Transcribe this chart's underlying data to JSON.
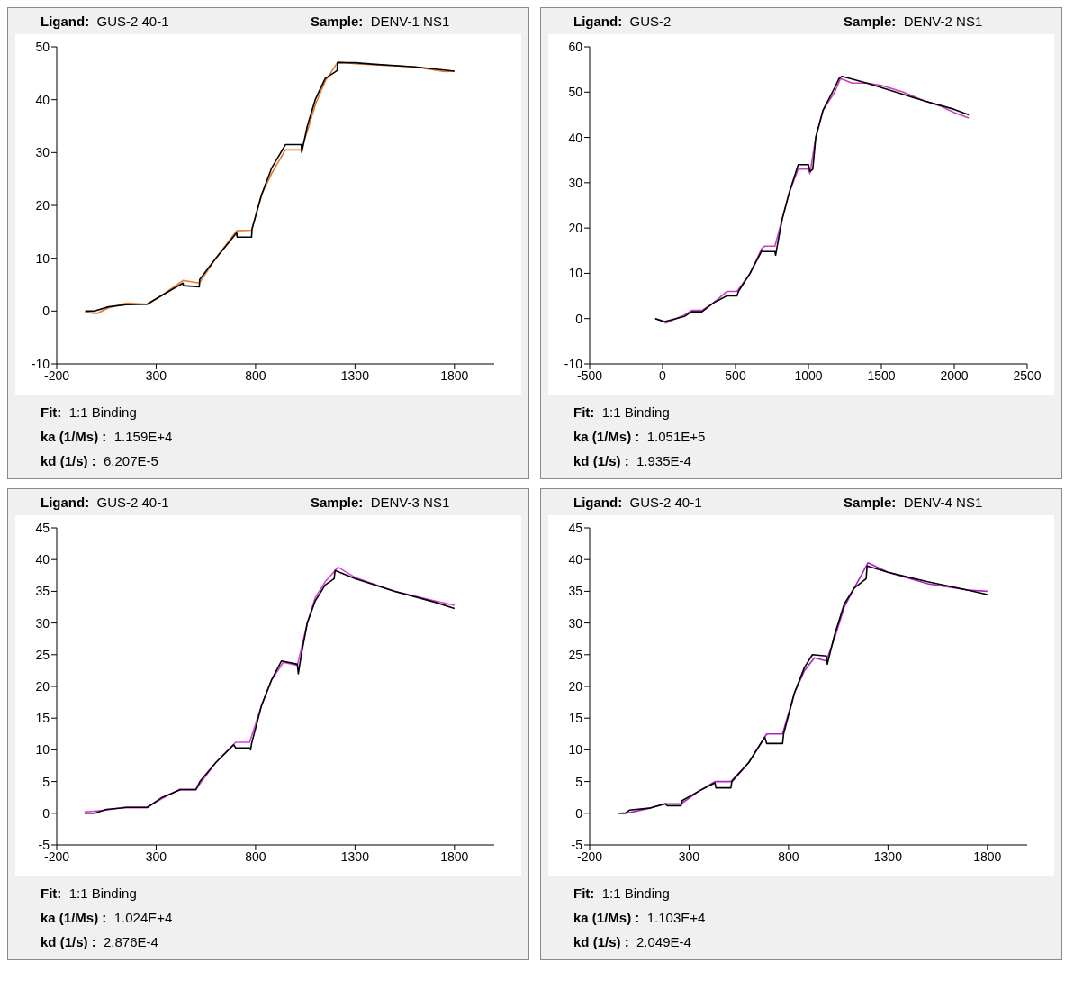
{
  "chart_data": [
    {
      "type": "line",
      "title": "Ligand:  GUS-2 40-1",
      "subtitle": "Sample:  DENV-1 NS1",
      "annotations": [
        "Fit:  1:1 Binding",
        "ka (1/Ms) :  1.159E+4",
        "kd (1/s) :  6.207E-5"
      ],
      "xlim": [
        -200,
        2000
      ],
      "xticks": [
        -200,
        300,
        800,
        1300,
        1800
      ],
      "ylim": [
        -10,
        50
      ],
      "yticks": [
        -10,
        0,
        10,
        20,
        30,
        40,
        50
      ],
      "grid": false,
      "line_style": "solid",
      "series": [
        {
          "color": "#e8782a",
          "x": [
            -57,
            0,
            60,
            150,
            255,
            330,
            435,
            517,
            600,
            705,
            780,
            830,
            880,
            950,
            1030,
            1060,
            1100,
            1150,
            1215,
            1300,
            1400,
            1600,
            1750,
            1800
          ],
          "values": [
            -0.2,
            -0.5,
            0.6,
            1.5,
            1.3,
            3,
            5.8,
            5.3,
            10,
            15.2,
            15.3,
            22,
            26,
            30.5,
            30.5,
            34,
            39,
            43.5,
            47.2,
            46.8,
            46.6,
            46.2,
            45.3,
            45.4
          ]
        },
        {
          "color": "#000000",
          "x": [
            -57,
            -10,
            60,
            150,
            255,
            330,
            435,
            437,
            517,
            519,
            600,
            705,
            707,
            780,
            782,
            830,
            880,
            950,
            1030,
            1032,
            1060,
            1100,
            1150,
            1210,
            1212,
            1300,
            1400,
            1600,
            1800
          ],
          "values": [
            0,
            0,
            0.8,
            1.2,
            1.3,
            3,
            5.3,
            4.8,
            4.6,
            6,
            10,
            14.8,
            14,
            14,
            15.5,
            22,
            27,
            31.5,
            31.5,
            30,
            35,
            40,
            44,
            45.5,
            47,
            47,
            46.7,
            46.2,
            45.4
          ]
        }
      ]
    },
    {
      "type": "line",
      "title": "Ligand:  GUS-2",
      "subtitle": "Sample:  DENV-2 NS1",
      "annotations": [
        "Fit:  1:1 Binding",
        "ka (1/Ms) :  1.051E+5",
        "kd (1/s) :  1.935E-4"
      ],
      "xlim": [
        -500,
        2500
      ],
      "xticks": [
        -500,
        0,
        500,
        1000,
        1500,
        2000,
        2500
      ],
      "ylim": [
        -10,
        60
      ],
      "yticks": [
        -10,
        0,
        10,
        20,
        30,
        40,
        50,
        60
      ],
      "grid": false,
      "line_style": "solid",
      "series": [
        {
          "color": "#d03cc8",
          "x": [
            -50,
            5,
            20,
            150,
            200,
            270,
            350,
            440,
            510,
            600,
            680,
            700,
            770,
            820,
            870,
            930,
            1000,
            1010,
            1050,
            1100,
            1180,
            1220,
            1300,
            1400,
            1500,
            1650,
            1800,
            1900,
            2000,
            2100
          ],
          "values": [
            0,
            -0.5,
            -1,
            0.8,
            1.8,
            1.8,
            3.5,
            6,
            6,
            10,
            15.5,
            16,
            16,
            22,
            28,
            33,
            33,
            32,
            40,
            46,
            50,
            53,
            52,
            52,
            51.5,
            50,
            48,
            47,
            45.5,
            44.3
          ]
        },
        {
          "color": "#000000",
          "x": [
            -50,
            10,
            150,
            200,
            270,
            350,
            440,
            510,
            520,
            600,
            680,
            690,
            770,
            775,
            780,
            820,
            870,
            930,
            1000,
            1010,
            1030,
            1050,
            1100,
            1180,
            1210,
            1230,
            1400,
            1600,
            1800,
            2000,
            2100
          ],
          "values": [
            0,
            -0.7,
            0.5,
            1.5,
            1.5,
            3.5,
            5,
            5,
            6,
            10,
            15,
            14.8,
            14.8,
            14,
            15,
            22,
            28,
            34,
            34,
            32.5,
            33,
            40,
            46,
            51,
            53,
            53.5,
            52,
            50,
            48,
            46.2,
            45
          ]
        }
      ]
    },
    {
      "type": "line",
      "title": "Ligand:  GUS-2 40-1",
      "subtitle": "Sample:  DENV-3 NS1",
      "annotations": [
        "Fit:  1:1 Binding",
        "ka (1/Ms) :  1.024E+4",
        "kd (1/s) :  2.876E-4"
      ],
      "xlim": [
        -200,
        2000
      ],
      "xticks": [
        -200,
        300,
        800,
        1300,
        1800
      ],
      "ylim": [
        -5,
        45
      ],
      "yticks": [
        -5,
        0,
        5,
        10,
        15,
        20,
        25,
        30,
        35,
        40,
        45
      ],
      "grid": false,
      "line_style": "solid",
      "series": [
        {
          "color": "#e040e0",
          "x": [
            -60,
            50,
            150,
            255,
            330,
            420,
            500,
            600,
            700,
            770,
            830,
            880,
            940,
            1010,
            1060,
            1100,
            1150,
            1215,
            1300,
            1500,
            1700,
            1800
          ],
          "values": [
            0.2,
            0.5,
            1,
            1,
            2.3,
            3.8,
            3.8,
            8,
            11.2,
            11.2,
            17,
            21,
            23.8,
            23.3,
            30,
            34,
            36.5,
            38.8,
            37.2,
            35,
            33.5,
            32.8
          ]
        },
        {
          "color": "#000000",
          "x": [
            -60,
            -10,
            50,
            150,
            255,
            330,
            420,
            500,
            520,
            600,
            690,
            700,
            770,
            775,
            780,
            830,
            880,
            930,
            1010,
            1015,
            1030,
            1060,
            1100,
            1150,
            1195,
            1200,
            1300,
            1500,
            1700,
            1800
          ],
          "values": [
            0,
            0,
            0.6,
            0.9,
            0.9,
            2.5,
            3.7,
            3.7,
            5,
            8,
            10.8,
            10.3,
            10.3,
            10,
            11,
            17,
            21,
            24,
            23.5,
            22,
            25,
            30,
            33.5,
            36,
            37,
            38.3,
            37,
            35,
            33.3,
            32.3
          ]
        }
      ]
    },
    {
      "type": "line",
      "title": "Ligand:  GUS-2 40-1",
      "subtitle": "Sample:  DENV-4 NS1",
      "annotations": [
        "Fit:  1:1 Binding",
        "ka (1/Ms) :  1.103E+4",
        "kd (1/s) :  2.049E-4"
      ],
      "xlim": [
        -200,
        2000
      ],
      "xticks": [
        -200,
        300,
        800,
        1300,
        1800
      ],
      "ylim": [
        -5,
        45
      ],
      "yticks": [
        -5,
        0,
        5,
        10,
        15,
        20,
        25,
        30,
        35,
        40,
        45
      ],
      "grid": false,
      "line_style": "solid",
      "series": [
        {
          "color": "#b020c8",
          "x": [
            -50,
            0,
            100,
            180,
            260,
            350,
            430,
            510,
            600,
            690,
            770,
            830,
            880,
            930,
            990,
            1030,
            1080,
            1130,
            1200,
            1300,
            1500,
            1700,
            1800
          ],
          "values": [
            0,
            0.1,
            0.8,
            1.5,
            1.5,
            3.5,
            5,
            5,
            8,
            12.5,
            12.5,
            19,
            22.5,
            24.5,
            24,
            27.5,
            32.5,
            35.5,
            39.5,
            38,
            36.2,
            35.2,
            35
          ]
        },
        {
          "color": "#000000",
          "x": [
            -60,
            -20,
            0,
            100,
            180,
            190,
            260,
            265,
            350,
            430,
            435,
            510,
            515,
            600,
            680,
            690,
            770,
            775,
            830,
            880,
            920,
            990,
            995,
            1030,
            1080,
            1130,
            1190,
            1195,
            1300,
            1500,
            1700,
            1800
          ],
          "values": [
            0,
            0,
            0.5,
            0.8,
            1.5,
            1.2,
            1.2,
            2,
            3.5,
            4.8,
            4,
            4,
            5,
            8,
            12,
            11,
            11,
            12.5,
            19,
            23,
            25,
            24.8,
            23.5,
            28,
            33,
            35.5,
            37,
            39,
            38,
            36.5,
            35.2,
            34.5
          ]
        }
      ]
    }
  ]
}
